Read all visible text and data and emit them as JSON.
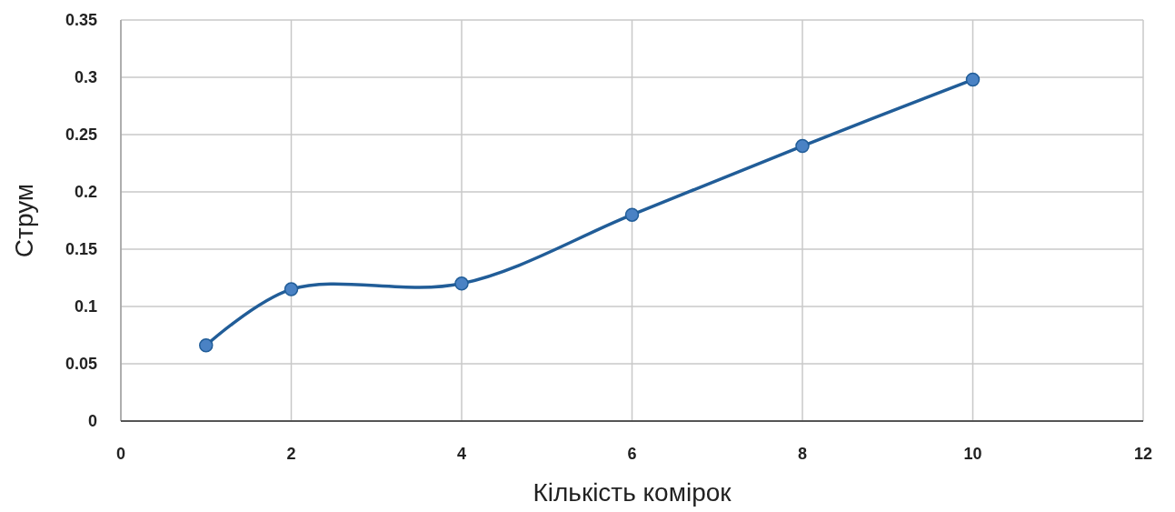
{
  "chart_data": {
    "type": "line",
    "xlabel": "Кількість комірок",
    "ylabel": "Струм",
    "x": [
      1,
      2,
      4,
      6,
      8,
      10
    ],
    "series": [
      {
        "color": "#215d98",
        "values": [
          0.066,
          0.115,
          0.12,
          0.18,
          0.24,
          0.298
        ]
      }
    ],
    "xlim": [
      0,
      12
    ],
    "xticks": [
      0,
      2,
      4,
      6,
      8,
      10,
      12
    ],
    "ylim": [
      0,
      0.35
    ],
    "yticks": [
      0,
      0.05,
      0.1,
      0.15,
      0.2,
      0.25,
      0.3,
      0.35
    ],
    "grid": true,
    "marker": "circle",
    "line_style": "solid"
  }
}
